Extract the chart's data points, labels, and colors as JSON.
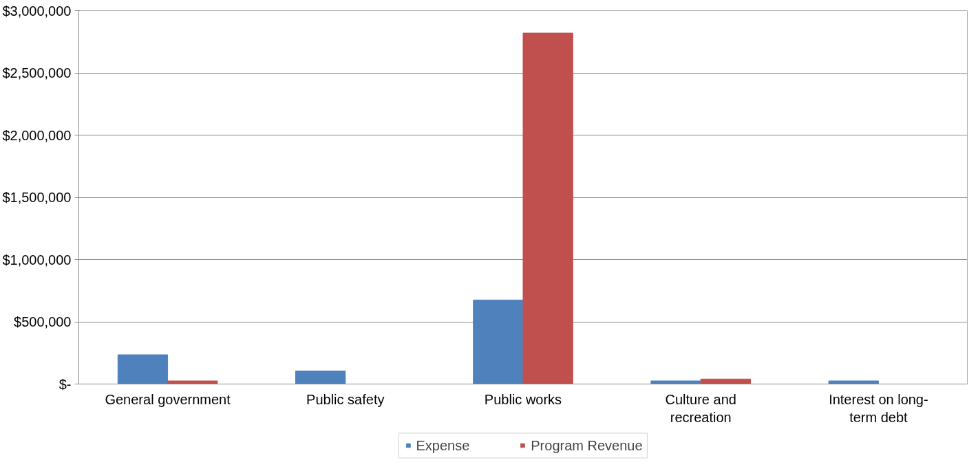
{
  "chart_data": {
    "type": "bar",
    "categories": [
      "General government",
      "Public safety",
      "Public works",
      "Culture and\nrecreation",
      "Interest on long-\nterm debt"
    ],
    "series": [
      {
        "name": "Expense",
        "color": "#4f81bd",
        "values": [
          235000,
          105000,
          675000,
          25000,
          25000
        ]
      },
      {
        "name": "Program Revenue",
        "color": "#c0504d",
        "values": [
          25000,
          0,
          2820000,
          40000,
          0
        ]
      }
    ],
    "ylim": [
      0,
      3000000
    ],
    "yticks": [
      {
        "value": 0,
        "label": "$-"
      },
      {
        "value": 500000,
        "label": "$500,000"
      },
      {
        "value": 1000000,
        "label": "$1,000,000"
      },
      {
        "value": 1500000,
        "label": "$1,500,000"
      },
      {
        "value": 2000000,
        "label": "$2,000,000"
      },
      {
        "value": 2500000,
        "label": "$2,500,000"
      },
      {
        "value": 3000000,
        "label": "$3,000,000"
      }
    ],
    "grid": "y",
    "legend": "bottom"
  }
}
